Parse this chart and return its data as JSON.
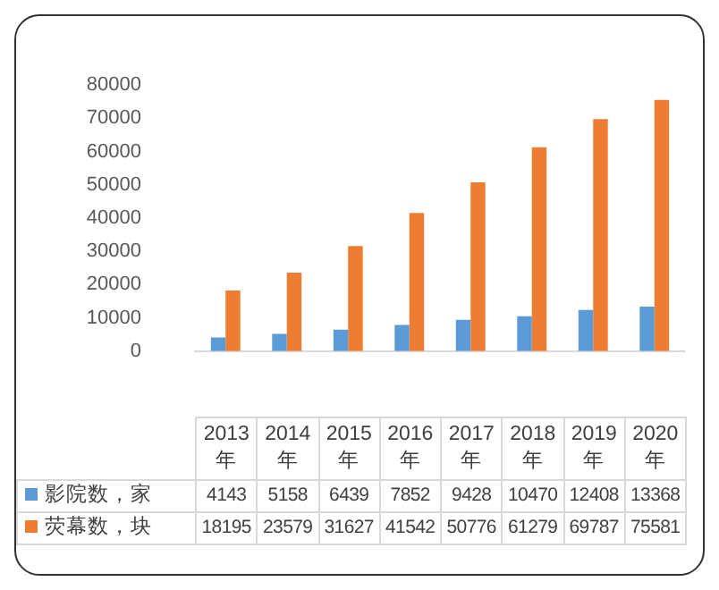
{
  "chart_data": {
    "type": "bar",
    "categories": [
      "2013年",
      "2014年",
      "2015年",
      "2016年",
      "2017年",
      "2018年",
      "2019年",
      "2020年"
    ],
    "series": [
      {
        "name": "影院数，家",
        "color": "#5b9bd5",
        "values": [
          4143,
          5158,
          6439,
          7852,
          9428,
          10470,
          12408,
          13368
        ]
      },
      {
        "name": "荧幕数，块",
        "color": "#ed7d31",
        "values": [
          18195,
          23579,
          31627,
          41542,
          50776,
          61279,
          69787,
          75581
        ]
      }
    ],
    "ylim": [
      0,
      80000
    ],
    "yticks": [
      0,
      10000,
      20000,
      30000,
      40000,
      50000,
      60000,
      70000,
      80000
    ],
    "grid": false,
    "legend": "bottom",
    "data_labels": true
  }
}
